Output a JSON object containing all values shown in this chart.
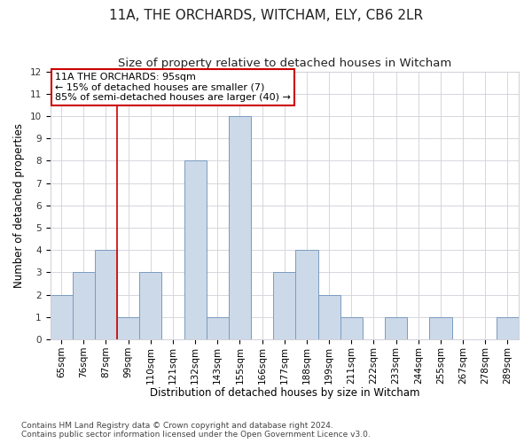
{
  "title": "11A, THE ORCHARDS, WITCHAM, ELY, CB6 2LR",
  "subtitle": "Size of property relative to detached houses in Witcham",
  "xlabel": "Distribution of detached houses by size in Witcham",
  "ylabel": "Number of detached properties",
  "bar_labels": [
    "65sqm",
    "76sqm",
    "87sqm",
    "99sqm",
    "110sqm",
    "121sqm",
    "132sqm",
    "143sqm",
    "155sqm",
    "166sqm",
    "177sqm",
    "188sqm",
    "199sqm",
    "211sqm",
    "222sqm",
    "233sqm",
    "244sqm",
    "255sqm",
    "267sqm",
    "278sqm",
    "289sqm"
  ],
  "bar_values": [
    2,
    3,
    4,
    1,
    3,
    0,
    8,
    1,
    10,
    0,
    3,
    4,
    2,
    1,
    0,
    1,
    0,
    1,
    0,
    0,
    1
  ],
  "bar_color": "#ccd9e8",
  "bar_edgecolor": "#7a9cc0",
  "vline_x_idx": 2.5,
  "vline_color": "#cc0000",
  "annotation_text": "11A THE ORCHARDS: 95sqm\n← 15% of detached houses are smaller (7)\n85% of semi-detached houses are larger (40) →",
  "annotation_box_color": "#cc0000",
  "ylim": [
    0,
    12
  ],
  "yticks": [
    0,
    1,
    2,
    3,
    4,
    5,
    6,
    7,
    8,
    9,
    10,
    11,
    12
  ],
  "footer_line1": "Contains HM Land Registry data © Crown copyright and database right 2024.",
  "footer_line2": "Contains public sector information licensed under the Open Government Licence v3.0.",
  "background_color": "#ffffff",
  "grid_color": "#d0d0d8",
  "title_fontsize": 11,
  "subtitle_fontsize": 9.5,
  "axis_label_fontsize": 8.5,
  "tick_fontsize": 7.5,
  "footer_fontsize": 6.5,
  "annotation_fontsize": 8
}
